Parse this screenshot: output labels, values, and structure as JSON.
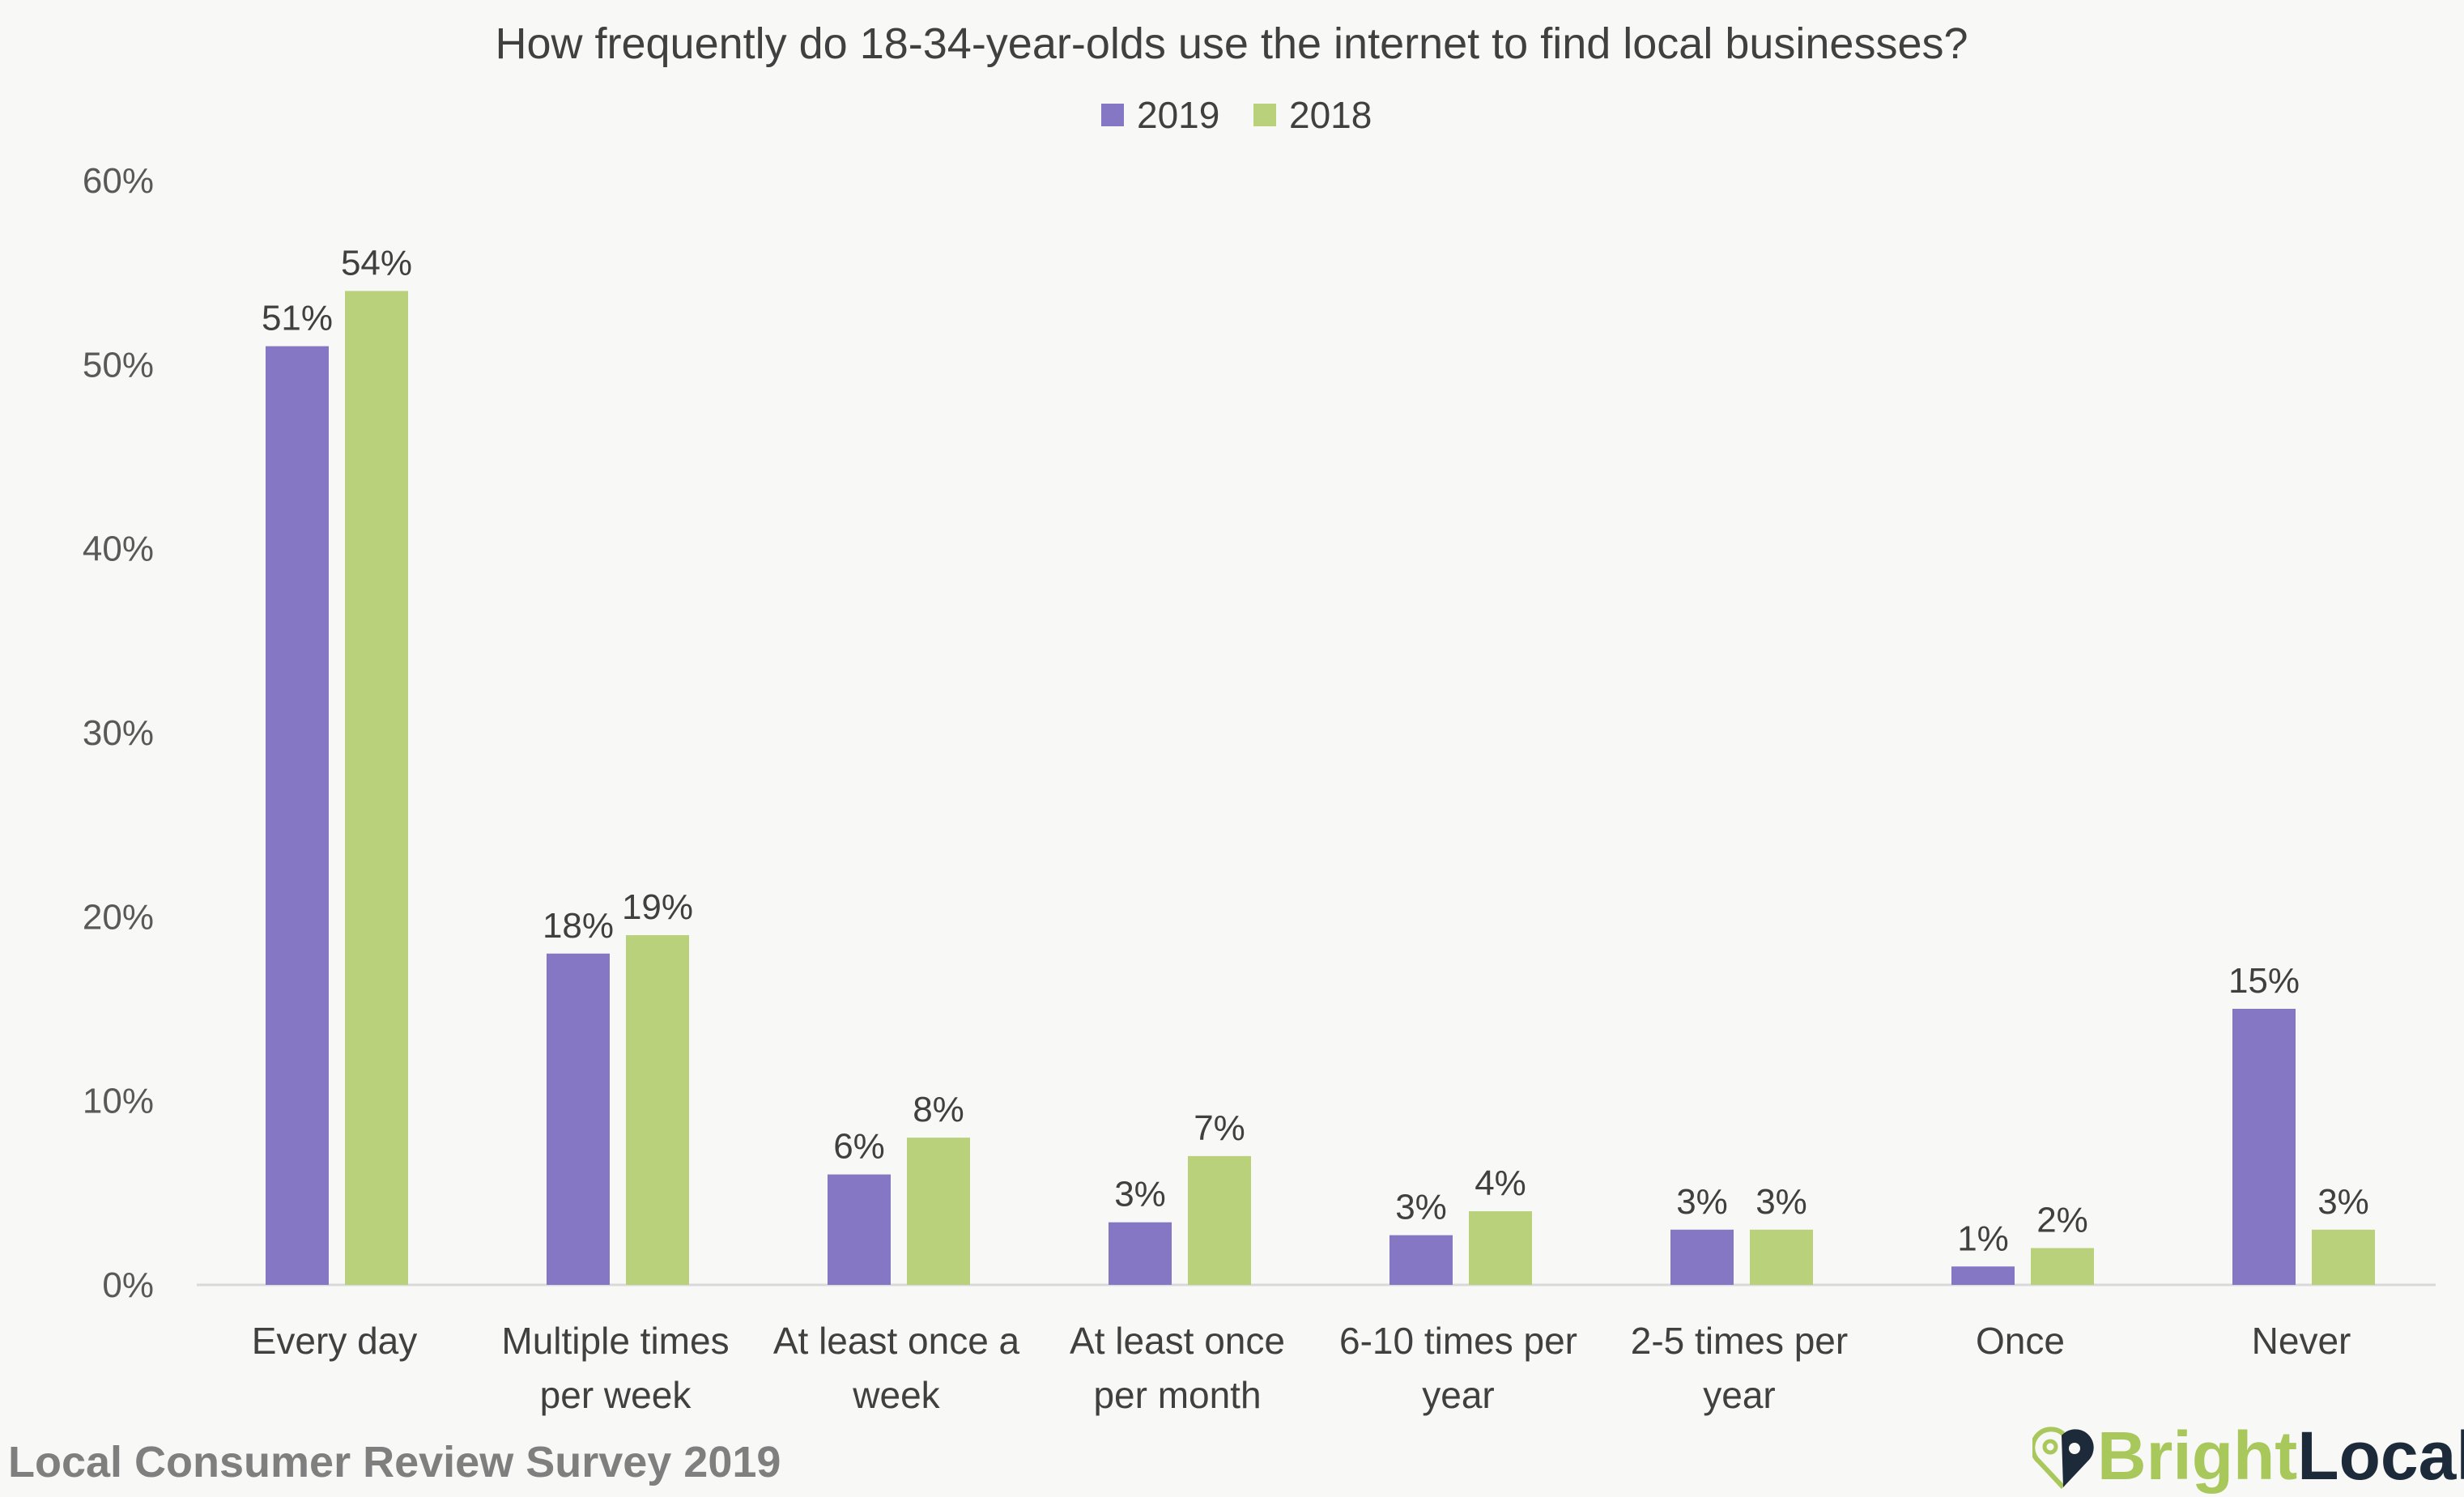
{
  "chart_data": {
    "type": "bar",
    "title": "How frequently do 18-34-year-olds use the internet to find local businesses?",
    "categories": [
      [
        "Every day"
      ],
      [
        "Multiple times",
        "per week"
      ],
      [
        "At least once a",
        "week"
      ],
      [
        "At least once",
        "per month"
      ],
      [
        "6-10 times per",
        "year"
      ],
      [
        "2-5 times per",
        "year"
      ],
      [
        "Once"
      ],
      [
        "Never"
      ]
    ],
    "series": [
      {
        "name": "2019",
        "color": "#8677c5",
        "values": [
          51,
          18,
          6,
          3.4,
          2.7,
          3,
          1,
          15
        ],
        "labels": [
          "51%",
          "18%",
          "6%",
          "3%",
          "3%",
          "3%",
          "1%",
          "15%"
        ]
      },
      {
        "name": "2018",
        "color": "#b8d17a",
        "values": [
          54,
          19,
          8,
          7,
          4,
          3,
          2,
          3
        ],
        "labels": [
          "54%",
          "19%",
          "8%",
          "7%",
          "4%",
          "3%",
          "2%",
          "3%"
        ]
      }
    ],
    "ylim": [
      0,
      60
    ],
    "yticks": [
      0,
      10,
      20,
      30,
      40,
      50,
      60
    ],
    "ytick_labels": [
      "0%",
      "10%",
      "20%",
      "30%",
      "40%",
      "50%",
      "60%"
    ],
    "legend_position": "top-center",
    "grid": false
  },
  "footer": {
    "source": "Local Consumer Review Survey 2019",
    "logo_bright": "Bright",
    "logo_local": "Local"
  }
}
